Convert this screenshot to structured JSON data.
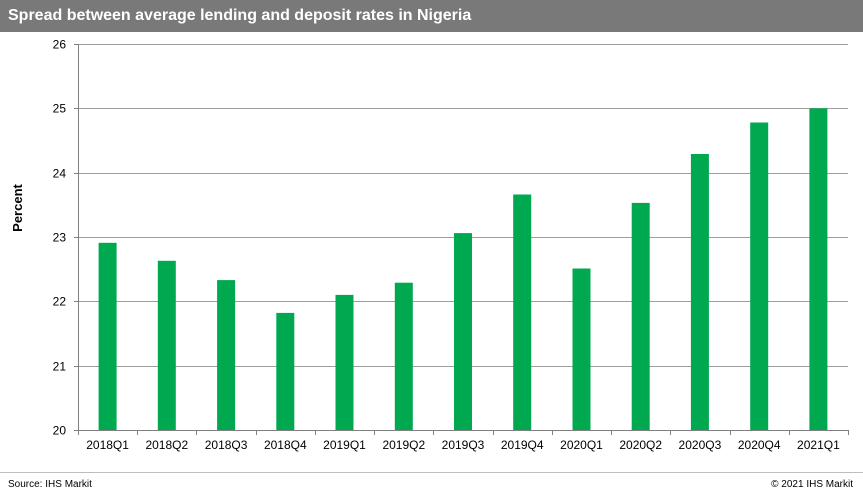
{
  "title": "Spread between average lending and deposit rates in Nigeria",
  "source": "Source:  IHS Markit",
  "copyright": "© 2021  IHS Markit",
  "colors": {
    "bar": "#00a94f",
    "title_bg": "#797979",
    "grid": "#9e9e9e"
  },
  "chart_data": {
    "type": "bar",
    "title": "Spread between average lending and deposit rates in Nigeria",
    "xlabel": "",
    "ylabel": "Percent",
    "ylim": [
      20,
      26
    ],
    "yticks": [
      20,
      21,
      22,
      23,
      24,
      25,
      26
    ],
    "grid": true,
    "categories": [
      "2018Q1",
      "2018Q2",
      "2018Q3",
      "2018Q4",
      "2019Q1",
      "2019Q2",
      "2019Q3",
      "2019Q4",
      "2020Q1",
      "2020Q2",
      "2020Q3",
      "2020Q4",
      "2021Q1"
    ],
    "values": [
      22.91,
      22.63,
      22.33,
      21.82,
      22.1,
      22.29,
      23.06,
      23.66,
      22.51,
      23.53,
      24.29,
      24.78,
      25.0
    ]
  }
}
